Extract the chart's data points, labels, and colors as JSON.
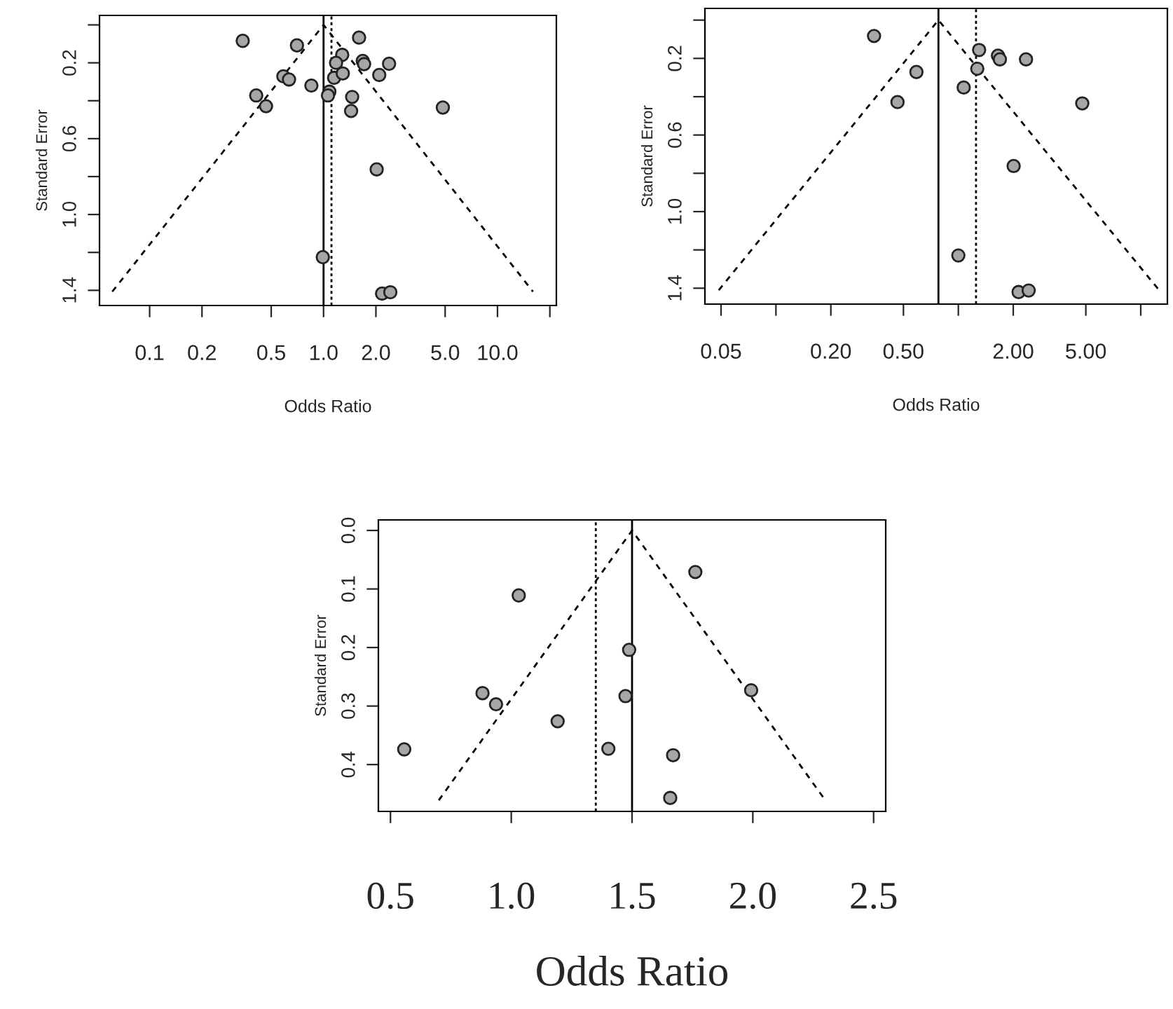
{
  "chart_data": [
    {
      "type": "scatter",
      "xlabel": "Odds Ratio",
      "ylabel": "Standard Error",
      "log": "x",
      "grid": false,
      "marker": "circle",
      "xlim": [
        0.0515,
        21.8
      ],
      "ylim": [
        1.48,
        -0.05
      ],
      "xticks": [
        {
          "value": 0.1,
          "label": "0.1"
        },
        {
          "value": 0.2,
          "label": "0.2"
        },
        {
          "value": 0.5,
          "label": "0.5"
        },
        {
          "value": 1,
          "label": "1.0"
        },
        {
          "value": 2,
          "label": "2.0"
        },
        {
          "value": 5,
          "label": "5.0"
        },
        {
          "value": 10,
          "label": "10.0"
        },
        {
          "value": 20,
          "label": null
        }
      ],
      "yticks": [
        {
          "value": 0,
          "label": null
        },
        {
          "value": 0.2,
          "label": "0.2"
        },
        {
          "value": 0.4,
          "label": null
        },
        {
          "value": 0.6,
          "label": "0.6"
        },
        {
          "value": 0.8,
          "label": null
        },
        {
          "value": 1.0,
          "label": "1.0"
        },
        {
          "value": 1.2,
          "label": null
        },
        {
          "value": 1.4,
          "label": "1.4"
        }
      ],
      "series": [
        {
          "type": "scatter",
          "color": "#a6a6a6",
          "x": [
            0.343,
            0.703,
            1.6,
            1.28,
            1.18,
            1.68,
            1.71,
            2.38,
            0.587,
            0.633,
            1.15,
            1.29,
            2.09,
            0.851,
            1.08,
            1.06,
            0.41,
            0.467,
            1.46,
            1.44,
            4.85,
            2.02,
            0.99,
            2.17,
            2.42
          ],
          "values": [
            0.084,
            0.108,
            0.067,
            0.158,
            0.2,
            0.19,
            0.207,
            0.205,
            0.271,
            0.288,
            0.279,
            0.256,
            0.264,
            0.32,
            0.352,
            0.372,
            0.372,
            0.429,
            0.38,
            0.454,
            0.436,
            0.762,
            1.225,
            1.417,
            1.41
          ]
        },
        {
          "type": "line",
          "marker": "none",
          "color": "#000000",
          "line_style": "dashed",
          "x": [
            0.061,
            1.0,
            16.0
          ],
          "values": [
            1.407,
            0,
            1.407
          ]
        }
      ],
      "ref_lines": [
        {
          "axis": "x",
          "value": 1.0,
          "color": "#000000",
          "line_style": "solid"
        },
        {
          "axis": "x",
          "value": 1.11,
          "color": "#000000",
          "line_style": "dotted"
        }
      ]
    },
    {
      "type": "scatter",
      "xlabel": "Odds Ratio",
      "ylabel": "Standard Error",
      "log": "x",
      "grid": false,
      "marker": "circle",
      "xlim": [
        0.0408,
        14
      ],
      "ylim": [
        1.483,
        -0.061
      ],
      "xticks": [
        {
          "value": 0.05,
          "label": "0.05"
        },
        {
          "value": 0.1,
          "label": null
        },
        {
          "value": 0.2,
          "label": "0.20"
        },
        {
          "value": 0.5,
          "label": "0.50"
        },
        {
          "value": 1,
          "label": null
        },
        {
          "value": 2,
          "label": "2.00"
        },
        {
          "value": 5,
          "label": "5.00"
        },
        {
          "value": 10,
          "label": null
        }
      ],
      "yticks": [
        {
          "value": 0,
          "label": null
        },
        {
          "value": 0.2,
          "label": "0.2"
        },
        {
          "value": 0.4,
          "label": null
        },
        {
          "value": 0.6,
          "label": "0.6"
        },
        {
          "value": 0.8,
          "label": null
        },
        {
          "value": 1.0,
          "label": "1.0"
        },
        {
          "value": 1.2,
          "label": null
        },
        {
          "value": 1.4,
          "label": "1.4"
        }
      ],
      "series": [
        {
          "type": "scatter",
          "color": "#a6a6a6",
          "x": [
            0.345,
            0.589,
            0.464,
            1.3,
            1.65,
            1.69,
            2.35,
            1.27,
            1.07,
            4.78,
            2.01,
            1.0,
            2.14,
            2.43
          ],
          "values": [
            0.083,
            0.271,
            0.428,
            0.156,
            0.186,
            0.205,
            0.205,
            0.254,
            0.352,
            0.435,
            0.762,
            1.229,
            1.42,
            1.412
          ]
        },
        {
          "type": "line",
          "marker": "none",
          "color": "#000000",
          "line_style": "dashed",
          "x": [
            0.0486,
            0.778,
            12.6
          ],
          "values": [
            1.41,
            0,
            1.41
          ]
        }
      ],
      "ref_lines": [
        {
          "axis": "x",
          "value": 0.778,
          "color": "#000000",
          "line_style": "solid"
        },
        {
          "axis": "x",
          "value": 1.25,
          "color": "#000000",
          "line_style": "dotted"
        }
      ]
    },
    {
      "type": "scatter",
      "xlabel": "Odds Ratio",
      "ylabel": "Standard Error",
      "grid": false,
      "marker": "circle",
      "xlim": [
        0.45,
        2.55
      ],
      "ylim": [
        0.48,
        -0.018
      ],
      "xticks": [
        {
          "value": 0.5,
          "label": "0.5"
        },
        {
          "value": 1,
          "label": "1.0"
        },
        {
          "value": 1.5,
          "label": "1.5"
        },
        {
          "value": 2,
          "label": "2.0"
        },
        {
          "value": 2.5,
          "label": "2.5"
        }
      ],
      "yticks": [
        {
          "value": 0,
          "label": "0.0"
        },
        {
          "value": 0.1,
          "label": "0.1"
        },
        {
          "value": 0.2,
          "label": "0.2"
        },
        {
          "value": 0.3,
          "label": "0.3"
        },
        {
          "value": 0.4,
          "label": "0.4"
        }
      ],
      "series": [
        {
          "type": "scatter",
          "color": "#a6a6a6",
          "x": [
            0.557,
            0.881,
            0.937,
            1.031,
            1.192,
            1.402,
            1.473,
            1.488,
            1.67,
            1.658,
            1.762,
            1.993
          ],
          "values": [
            0.374,
            0.278,
            0.297,
            0.111,
            0.326,
            0.373,
            0.283,
            0.204,
            0.384,
            0.457,
            0.071,
            0.273
          ]
        },
        {
          "type": "line",
          "marker": "none",
          "color": "#000000",
          "line_style": "dashed",
          "x": [
            0.7,
            1.5,
            2.3
          ],
          "values": [
            0.461,
            0,
            0.461
          ]
        }
      ],
      "ref_lines": [
        {
          "axis": "x",
          "value": 1.5,
          "color": "#000000",
          "line_style": "solid"
        },
        {
          "axis": "x",
          "value": 1.35,
          "color": "#000000",
          "line_style": "dotted"
        }
      ]
    }
  ]
}
